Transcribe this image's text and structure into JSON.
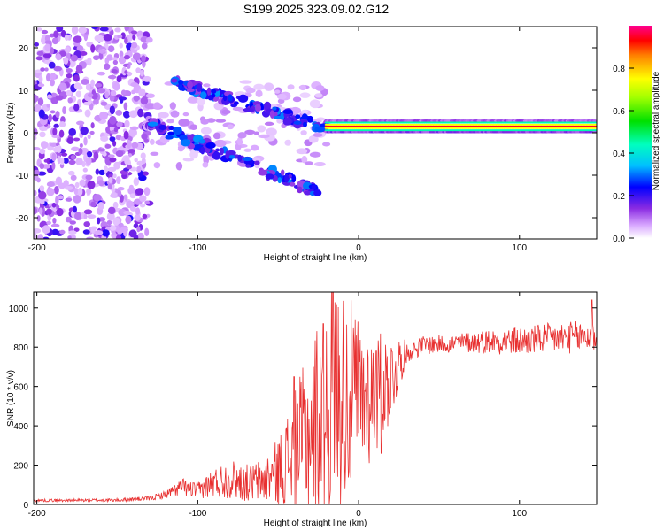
{
  "title": "S199.2025.323.09.02.G12",
  "colors": {
    "snr_line": "#e83030",
    "frame": "#000000"
  },
  "chart_data": [
    {
      "type": "heatmap",
      "name": "spectrogram",
      "xlabel": "Height of straight line (km)",
      "ylabel": "Frequency (Hz)",
      "xlim": [
        -202,
        148
      ],
      "ylim": [
        -25,
        25
      ],
      "xticks": [
        -200,
        -100,
        0,
        100
      ],
      "yticks": [
        -20,
        -10,
        0,
        10,
        20
      ],
      "colorbar": {
        "label": "Normalized spectral amplitude",
        "range": [
          0,
          1
        ],
        "ticks": [
          0.0,
          0.2,
          0.4,
          0.6,
          0.8
        ]
      },
      "features": [
        {
          "desc": "steady carrier line",
          "x_range": [
            -20,
            148
          ],
          "freq_hz": 1.5,
          "amplitude": 1.0
        },
        {
          "desc": "diffuse low-amplitude noise",
          "x_range": [
            -202,
            -130
          ],
          "freq_hz_range": [
            -25,
            25
          ],
          "amplitude": 0.15
        },
        {
          "desc": "upper branch",
          "x_start": -115,
          "x_end": -20,
          "freq_start_hz": 12,
          "freq_end_hz": 1
        },
        {
          "desc": "lower branch",
          "x_start": -130,
          "x_end": -25,
          "freq_start_hz": 2,
          "freq_end_hz": -14
        }
      ]
    },
    {
      "type": "line",
      "name": "snr",
      "xlabel": "Height of straight line (km)",
      "ylabel": "SNR (10 * v/v)",
      "xlim": [
        -202,
        148
      ],
      "ylim": [
        0,
        1080
      ],
      "xticks": [
        -200,
        -100,
        0,
        100
      ],
      "yticks": [
        0,
        200,
        400,
        600,
        800,
        1000
      ],
      "profile": [
        [
          -202,
          20
        ],
        [
          -150,
          22
        ],
        [
          -130,
          30
        ],
        [
          -120,
          50
        ],
        [
          -110,
          90
        ],
        [
          -100,
          70
        ],
        [
          -90,
          110
        ],
        [
          -80,
          130
        ],
        [
          -70,
          110
        ],
        [
          -60,
          120
        ],
        [
          -50,
          170
        ],
        [
          -40,
          270
        ],
        [
          -30,
          380
        ],
        [
          -20,
          520
        ],
        [
          -10,
          560
        ],
        [
          0,
          540
        ],
        [
          10,
          560
        ],
        [
          20,
          640
        ],
        [
          28,
          760
        ],
        [
          40,
          810
        ],
        [
          60,
          820
        ],
        [
          80,
          830
        ],
        [
          100,
          830
        ],
        [
          120,
          845
        ],
        [
          148,
          855
        ]
      ],
      "noise_fraction": [
        [
          -202,
          0.35
        ],
        [
          -120,
          0.4
        ],
        [
          -90,
          0.7
        ],
        [
          -40,
          1.1
        ],
        [
          -20,
          1.2
        ],
        [
          0,
          0.8
        ],
        [
          20,
          0.35
        ],
        [
          30,
          0.06
        ],
        [
          60,
          0.06
        ],
        [
          100,
          0.09
        ],
        [
          148,
          0.1
        ]
      ],
      "spikes": [
        {
          "x": -16,
          "y": 1080
        },
        {
          "x": -22,
          "y": 920
        },
        {
          "x": -40,
          "y": 650
        },
        {
          "x": 11,
          "y": 780
        },
        {
          "x": 14,
          "y": 260
        },
        {
          "x": 145,
          "y": 1040
        }
      ]
    }
  ]
}
